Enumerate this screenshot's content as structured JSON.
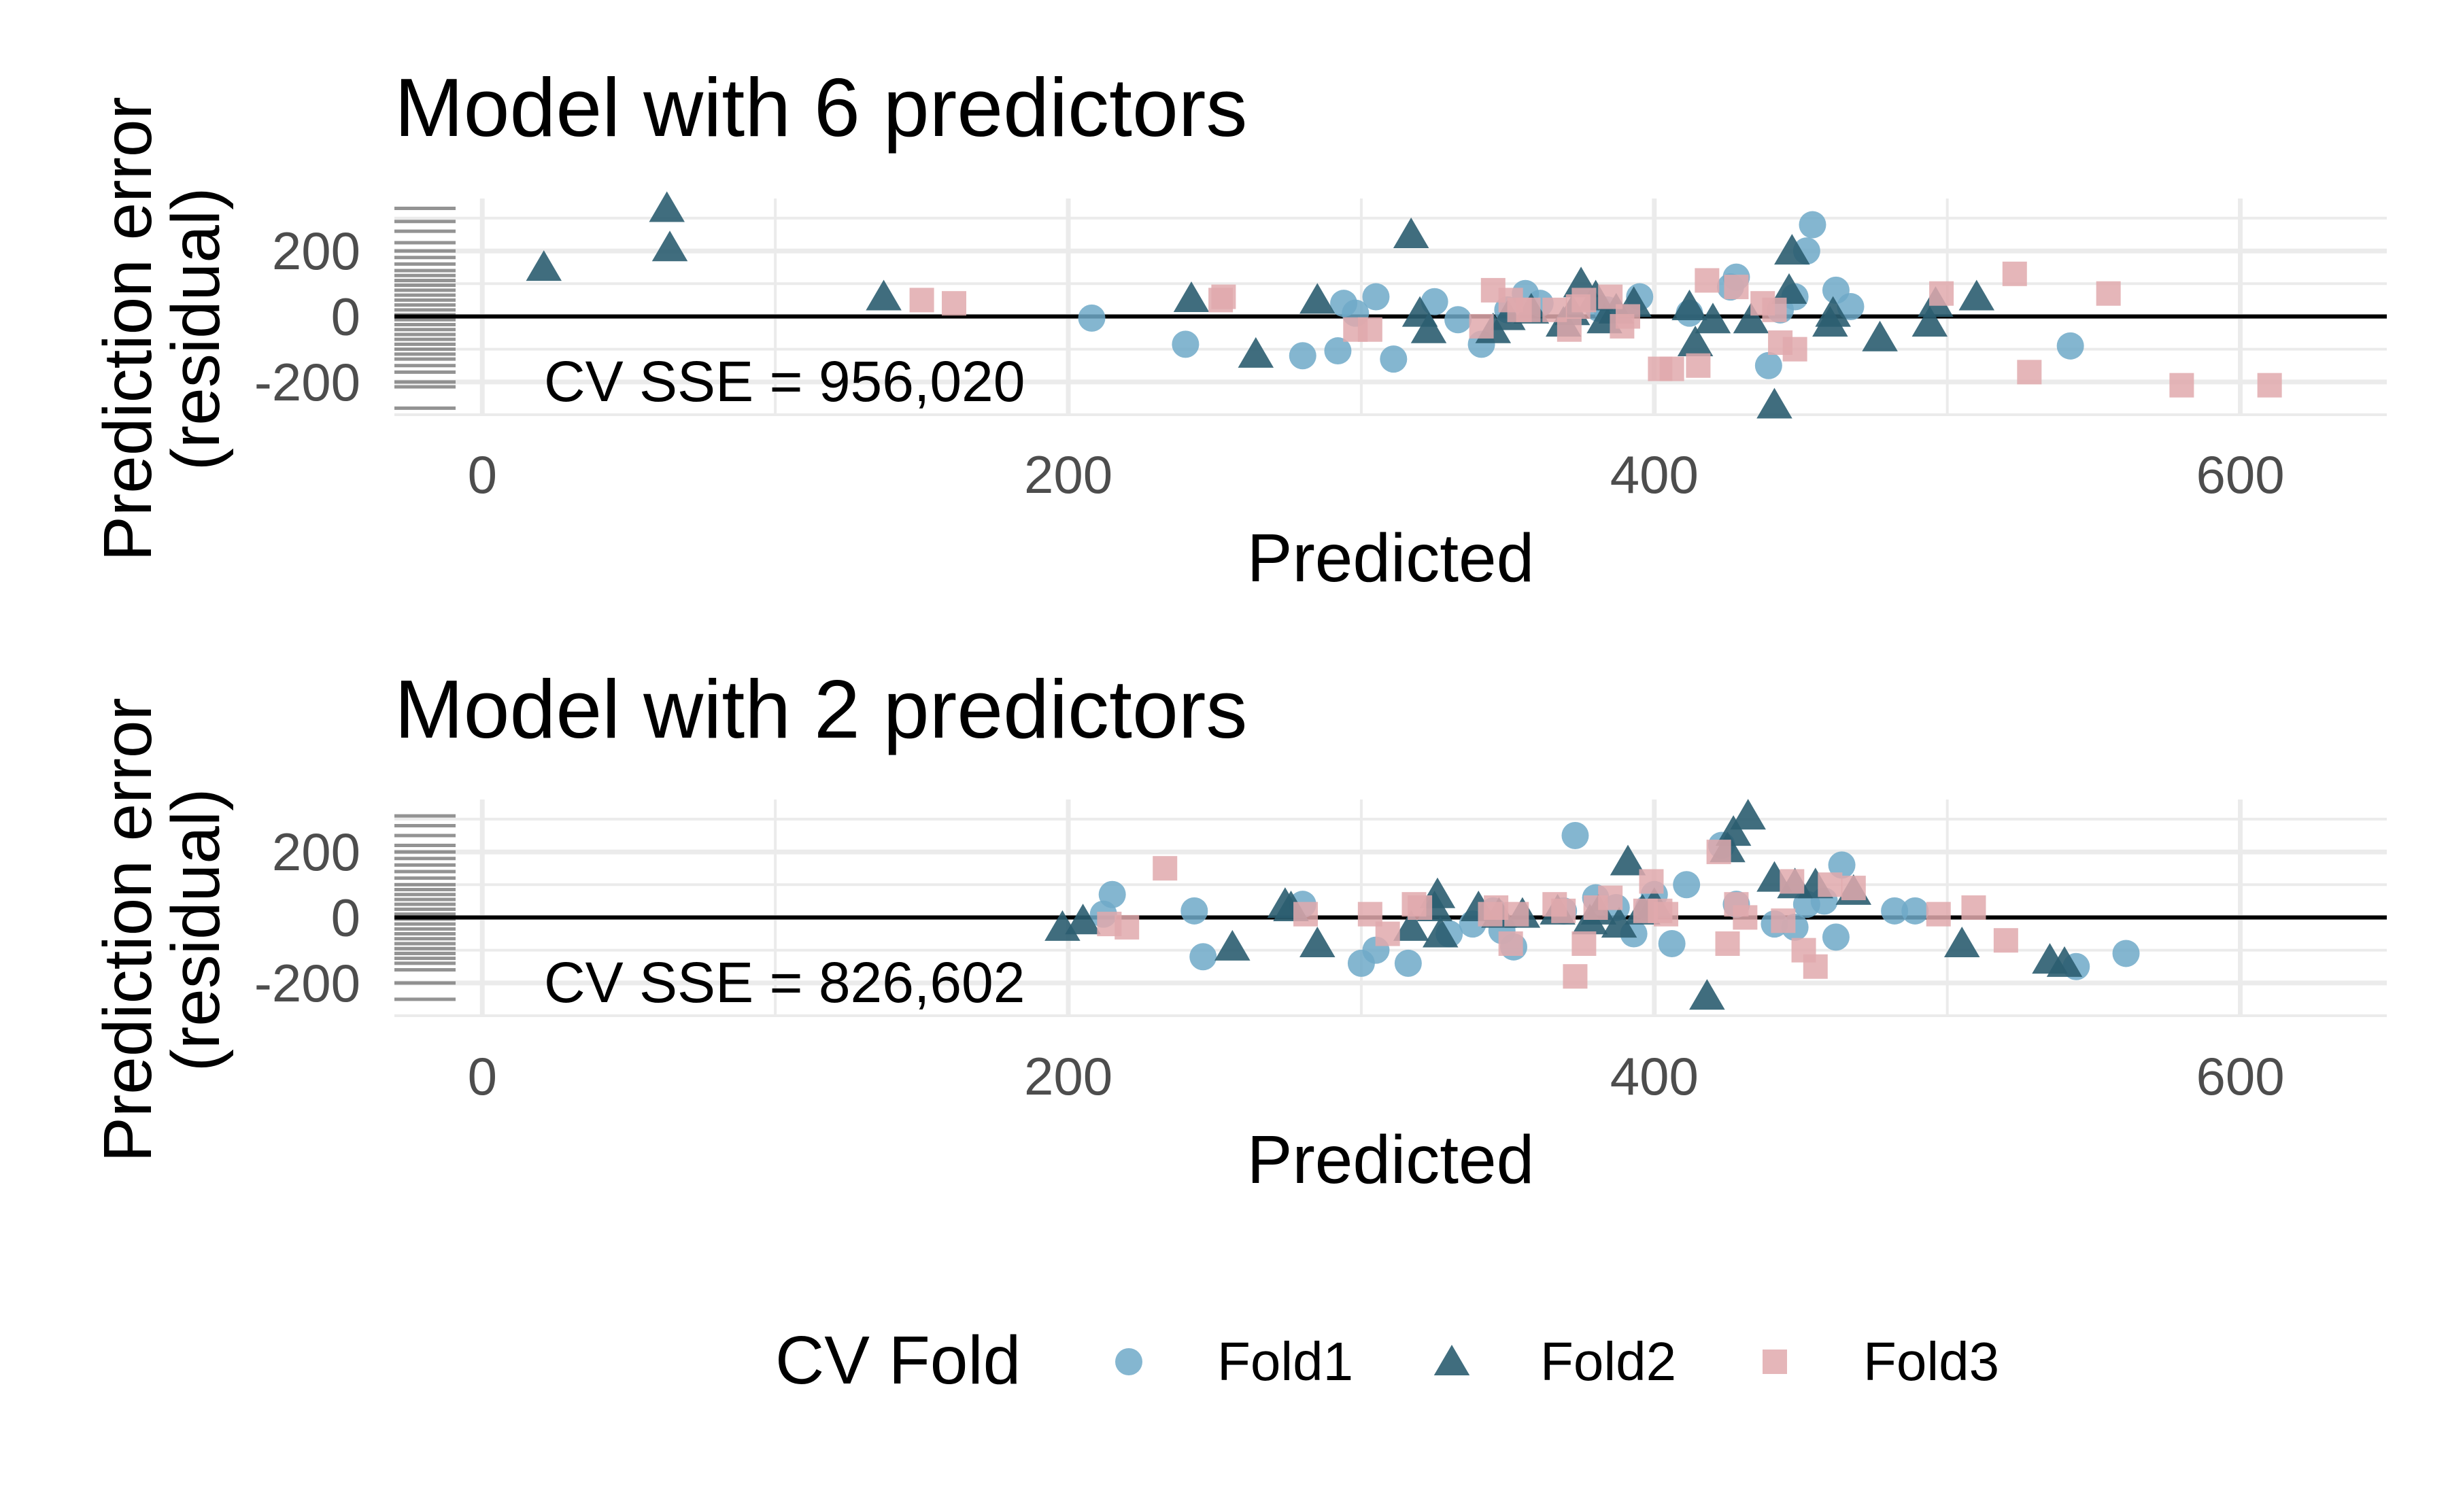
{
  "chart_data": [
    {
      "type": "scatter",
      "title": "Model with 6 predictors",
      "xlabel": "Predicted",
      "ylabel": [
        "Prediction error",
        "(residual)"
      ],
      "xlim": [
        -30,
        650
      ],
      "ylim": [
        -300,
        360
      ],
      "xticks": [
        0,
        200,
        400,
        600
      ],
      "yticks": [
        -200,
        0,
        200
      ],
      "xtick_labels": [
        "0",
        "200",
        "400",
        "600"
      ],
      "ytick_labels": [
        "-200",
        "0",
        "200"
      ],
      "annotation": "CV SSE = 956,020",
      "zero_line": 0,
      "grid": true,
      "rug_y": [
        330,
        290,
        260,
        225,
        200,
        180,
        160,
        140,
        125,
        110,
        95,
        80,
        65,
        50,
        35,
        20,
        5,
        -10,
        -25,
        -40,
        -55,
        -70,
        -85,
        -100,
        -115,
        -130,
        -150,
        -170,
        -200,
        -215,
        -280
      ],
      "series": [
        {
          "name": "Fold1",
          "points": [
            [
              208,
              -5
            ],
            [
              240,
              -85
            ],
            [
              280,
              -120
            ],
            [
              292,
              -105
            ],
            [
              294,
              40
            ],
            [
              298,
              10
            ],
            [
              305,
              60
            ],
            [
              311,
              -130
            ],
            [
              325,
              45
            ],
            [
              333,
              -10
            ],
            [
              341,
              -85
            ],
            [
              350,
              20
            ],
            [
              356,
              70
            ],
            [
              361,
              40
            ],
            [
              381,
              25
            ],
            [
              384,
              20
            ],
            [
              395,
              60
            ],
            [
              412,
              10
            ],
            [
              426,
              90
            ],
            [
              428,
              120
            ],
            [
              439,
              -150
            ],
            [
              443,
              20
            ],
            [
              448,
              60
            ],
            [
              452,
              200
            ],
            [
              454,
              280
            ],
            [
              462,
              80
            ],
            [
              467,
              30
            ],
            [
              542,
              -90
            ]
          ]
        },
        {
          "name": "Fold2",
          "points": [
            [
              21,
              150
            ],
            [
              63,
              330
            ],
            [
              64,
              210
            ],
            [
              137,
              60
            ],
            [
              242,
              55
            ],
            [
              264,
              -115
            ],
            [
              285,
              50
            ],
            [
              317,
              250
            ],
            [
              320,
              10
            ],
            [
              323,
              -40
            ],
            [
              345,
              -40
            ],
            [
              350,
              0
            ],
            [
              358,
              20
            ],
            [
              369,
              -20
            ],
            [
              372,
              15
            ],
            [
              375,
              100
            ],
            [
              380,
              60
            ],
            [
              383,
              -10
            ],
            [
              387,
              20
            ],
            [
              393,
              40
            ],
            [
              412,
              30
            ],
            [
              414,
              -80
            ],
            [
              420,
              -10
            ],
            [
              433,
              -10
            ],
            [
              441,
              -270
            ],
            [
              446,
              80
            ],
            [
              447,
              200
            ],
            [
              460,
              -20
            ],
            [
              461,
              10
            ],
            [
              477,
              -65
            ],
            [
              494,
              -20
            ],
            [
              496,
              40
            ],
            [
              510,
              60
            ]
          ]
        },
        {
          "name": "Fold3",
          "points": [
            [
              150,
              50
            ],
            [
              161,
              40
            ],
            [
              252,
              50
            ],
            [
              253,
              60
            ],
            [
              298,
              -40
            ],
            [
              303,
              -40
            ],
            [
              341,
              -30
            ],
            [
              345,
              80
            ],
            [
              351,
              50
            ],
            [
              354,
              20
            ],
            [
              357,
              20
            ],
            [
              366,
              20
            ],
            [
              371,
              -40
            ],
            [
              374,
              30
            ],
            [
              376,
              50
            ],
            [
              385,
              60
            ],
            [
              389,
              -30
            ],
            [
              391,
              0
            ],
            [
              402,
              -160
            ],
            [
              406,
              -160
            ],
            [
              415,
              -150
            ],
            [
              418,
              110
            ],
            [
              428,
              90
            ],
            [
              437,
              40
            ],
            [
              441,
              20
            ],
            [
              443,
              -80
            ],
            [
              448,
              -100
            ],
            [
              498,
              70
            ],
            [
              523,
              130
            ],
            [
              528,
              -170
            ],
            [
              555,
              70
            ],
            [
              580,
              -210
            ],
            [
              610,
              -210
            ]
          ]
        }
      ]
    },
    {
      "type": "scatter",
      "title": "Model with 2 predictors",
      "xlabel": "Predicted",
      "ylabel": [
        "Prediction error",
        "(residual)"
      ],
      "xlim": [
        -30,
        650
      ],
      "ylim": [
        -300,
        360
      ],
      "xticks": [
        0,
        200,
        400,
        600
      ],
      "yticks": [
        -200,
        0,
        200
      ],
      "xtick_labels": [
        "0",
        "200",
        "400",
        "600"
      ],
      "ytick_labels": [
        "-200",
        "0",
        "200"
      ],
      "annotation": "CV SSE = 826,602",
      "zero_line": 0,
      "grid": true,
      "rug_y": [
        310,
        280,
        250,
        220,
        200,
        180,
        160,
        140,
        120,
        100,
        85,
        70,
        55,
        40,
        25,
        10,
        -5,
        -20,
        -35,
        -50,
        -65,
        -80,
        -95,
        -110,
        -125,
        -140,
        -160,
        -200,
        -250
      ],
      "series": [
        {
          "name": "Fold1",
          "points": [
            [
              212,
              10
            ],
            [
              215,
              70
            ],
            [
              243,
              20
            ],
            [
              246,
              -120
            ],
            [
              280,
              40
            ],
            [
              300,
              -140
            ],
            [
              305,
              -100
            ],
            [
              316,
              -140
            ],
            [
              330,
              -50
            ],
            [
              338,
              -20
            ],
            [
              345,
              20
            ],
            [
              348,
              -40
            ],
            [
              352,
              -90
            ],
            [
              369,
              20
            ],
            [
              373,
              250
            ],
            [
              380,
              60
            ],
            [
              387,
              30
            ],
            [
              393,
              -50
            ],
            [
              398,
              30
            ],
            [
              400,
              70
            ],
            [
              406,
              -80
            ],
            [
              411,
              100
            ],
            [
              423,
              220
            ],
            [
              428,
              40
            ],
            [
              441,
              -20
            ],
            [
              448,
              -30
            ],
            [
              452,
              40
            ],
            [
              458,
              50
            ],
            [
              462,
              -60
            ],
            [
              464,
              160
            ],
            [
              482,
              20
            ],
            [
              489,
              20
            ],
            [
              544,
              -150
            ],
            [
              561,
              -110
            ]
          ]
        },
        {
          "name": "Fold2",
          "points": [
            [
              198,
              -30
            ],
            [
              205,
              -10
            ],
            [
              256,
              -90
            ],
            [
              274,
              40
            ],
            [
              276,
              30
            ],
            [
              285,
              -80
            ],
            [
              317,
              -30
            ],
            [
              325,
              30
            ],
            [
              326,
              70
            ],
            [
              327,
              -50
            ],
            [
              340,
              30
            ],
            [
              347,
              10
            ],
            [
              355,
              10
            ],
            [
              367,
              20
            ],
            [
              378,
              -10
            ],
            [
              381,
              20
            ],
            [
              388,
              -20
            ],
            [
              391,
              170
            ],
            [
              396,
              20
            ],
            [
              400,
              40
            ],
            [
              418,
              -240
            ],
            [
              425,
              210
            ],
            [
              427,
              260
            ],
            [
              432,
              310
            ],
            [
              441,
              120
            ],
            [
              448,
              100
            ],
            [
              455,
              100
            ],
            [
              468,
              80
            ],
            [
              505,
              -80
            ],
            [
              535,
              -130
            ],
            [
              540,
              -140
            ]
          ]
        },
        {
          "name": "Fold3",
          "points": [
            [
              214,
              -20
            ],
            [
              220,
              -30
            ],
            [
              233,
              150
            ],
            [
              281,
              10
            ],
            [
              303,
              10
            ],
            [
              309,
              -50
            ],
            [
              318,
              40
            ],
            [
              320,
              30
            ],
            [
              344,
              10
            ],
            [
              346,
              30
            ],
            [
              351,
              -80
            ],
            [
              353,
              10
            ],
            [
              366,
              40
            ],
            [
              369,
              20
            ],
            [
              373,
              -180
            ],
            [
              376,
              -80
            ],
            [
              380,
              30
            ],
            [
              385,
              60
            ],
            [
              397,
              20
            ],
            [
              399,
              110
            ],
            [
              402,
              20
            ],
            [
              404,
              10
            ],
            [
              422,
              200
            ],
            [
              425,
              -80
            ],
            [
              428,
              40
            ],
            [
              431,
              0
            ],
            [
              444,
              -10
            ],
            [
              447,
              110
            ],
            [
              451,
              -100
            ],
            [
              455,
              -150
            ],
            [
              460,
              100
            ],
            [
              468,
              90
            ],
            [
              497,
              10
            ],
            [
              509,
              30
            ],
            [
              520,
              -70
            ]
          ]
        }
      ]
    }
  ],
  "legend": {
    "title": "CV Fold",
    "placement": "bottom",
    "items": [
      "Fold1",
      "Fold2",
      "Fold3"
    ]
  },
  "colors": {
    "Fold1": "#6ea9c8",
    "Fold2": "#2b5d70",
    "Fold3": "#e1a9ad",
    "grid": "#ebebeb",
    "rug": "#808080",
    "zero_line": "#000000"
  },
  "shapes": {
    "Fold1": "circle",
    "Fold2": "triangle",
    "Fold3": "square"
  }
}
